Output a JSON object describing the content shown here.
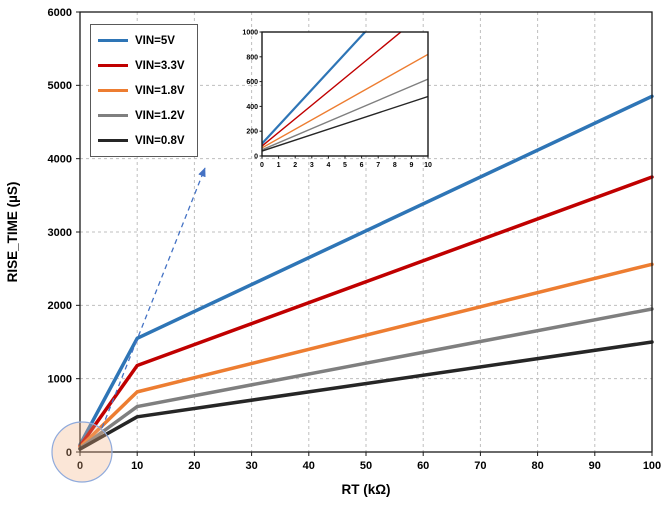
{
  "chart_data": {
    "type": "line",
    "title": "",
    "xlabel": "RT (kΩ)",
    "ylabel": "RISE_TIME (µS)",
    "xlim": [
      0,
      100
    ],
    "ylim": [
      0,
      6000
    ],
    "x_ticks": [
      0,
      10,
      20,
      30,
      40,
      50,
      60,
      70,
      80,
      90,
      100
    ],
    "y_ticks": [
      0,
      1000,
      2000,
      3000,
      4000,
      5000,
      6000
    ],
    "grid": true,
    "legend_position": "top-left",
    "x": [
      0,
      10,
      100
    ],
    "series": [
      {
        "name": "VIN=5V",
        "color": "#2E75B6",
        "values": [
          100,
          1550,
          4850
        ]
      },
      {
        "name": "VIN=3.3V",
        "color": "#C00000",
        "values": [
          80,
          1180,
          3750
        ]
      },
      {
        "name": "VIN=1.8V",
        "color": "#ED7D31",
        "values": [
          65,
          820,
          2560
        ]
      },
      {
        "name": "VIN=1.2V",
        "color": "#7F7F7F",
        "values": [
          50,
          620,
          1950
        ]
      },
      {
        "name": "VIN=0.8V",
        "color": "#262626",
        "values": [
          40,
          480,
          1500
        ]
      }
    ],
    "inset": {
      "description": "zoomed view of 0-10 kΩ region",
      "xlim": [
        0,
        10
      ],
      "ylim": [
        0,
        1000
      ],
      "x_ticks": [
        0,
        1,
        2,
        3,
        4,
        5,
        6,
        7,
        8,
        9,
        10
      ],
      "y_ticks": [
        0,
        200,
        400,
        600,
        800,
        1000
      ],
      "x": [
        0,
        10
      ],
      "grid": false
    },
    "annotations": {
      "origin_highlight": "circle around chart origin",
      "zoom_arrow_color": "#4472C4"
    }
  }
}
